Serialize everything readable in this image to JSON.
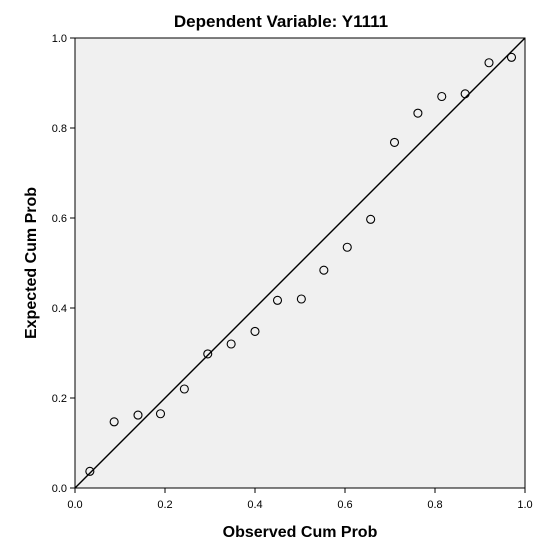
{
  "chart_data": {
    "type": "scatter",
    "title": "Dependent Variable: Y1111",
    "xlabel": "Observed Cum Prob",
    "ylabel": "Expected Cum Prob",
    "xlim": [
      0.0,
      1.0
    ],
    "ylim": [
      0.0,
      1.0
    ],
    "xticks": [
      "0.0",
      "0.2",
      "0.4",
      "0.6",
      "0.8",
      "1.0"
    ],
    "yticks": [
      "0.0",
      "0.2",
      "0.4",
      "0.6",
      "0.8",
      "1.0"
    ],
    "grid": false,
    "reference_line": [
      [
        0,
        0
      ],
      [
        1,
        1
      ]
    ],
    "points": [
      [
        0.033,
        0.037
      ],
      [
        0.087,
        0.147
      ],
      [
        0.14,
        0.162
      ],
      [
        0.19,
        0.165
      ],
      [
        0.243,
        0.22
      ],
      [
        0.295,
        0.298
      ],
      [
        0.347,
        0.32
      ],
      [
        0.4,
        0.348
      ],
      [
        0.45,
        0.417
      ],
      [
        0.503,
        0.42
      ],
      [
        0.553,
        0.484
      ],
      [
        0.605,
        0.535
      ],
      [
        0.657,
        0.597
      ],
      [
        0.71,
        0.768
      ],
      [
        0.762,
        0.833
      ],
      [
        0.815,
        0.87
      ],
      [
        0.867,
        0.876
      ],
      [
        0.92,
        0.945
      ],
      [
        0.97,
        0.957
      ]
    ],
    "colors": {
      "plot_background": "#f0f0f0",
      "marker": "#000000",
      "line": "#000000"
    }
  }
}
